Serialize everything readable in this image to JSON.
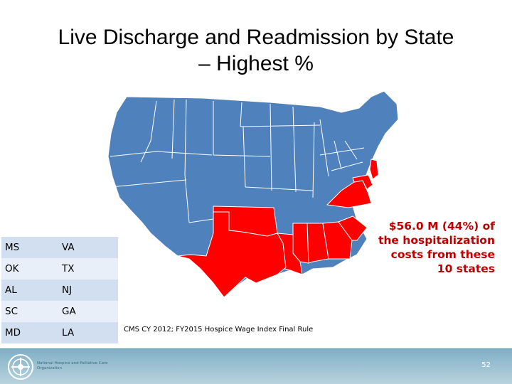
{
  "slide": {
    "title_line1": "Live Discharge and Readmission by State",
    "title_line2": "– Highest %",
    "callout_lines": [
      "$56.0 M (44%) of",
      "the hospitalization",
      "costs from these",
      "10 states"
    ],
    "source": "CMS CY 2012; FY2015 Hospice Wage Index Final Rule",
    "page_number": "52",
    "organization_lines": [
      "National Hospice and Palliative Care",
      "Organization"
    ]
  },
  "states_table": [
    [
      "MS",
      "VA"
    ],
    [
      "OK",
      "TX"
    ],
    [
      "AL",
      "NJ"
    ],
    [
      "SC",
      "GA"
    ],
    [
      "MD",
      "LA"
    ]
  ],
  "map": {
    "highlighted_states": [
      "TX",
      "OK",
      "LA",
      "MS",
      "AL",
      "GA",
      "SC",
      "VA",
      "MD",
      "NJ"
    ],
    "colors": {
      "highlight": "#ff0000",
      "default": "#4f81bd",
      "border": "#ffffff",
      "callout_text": "#c00000"
    }
  }
}
